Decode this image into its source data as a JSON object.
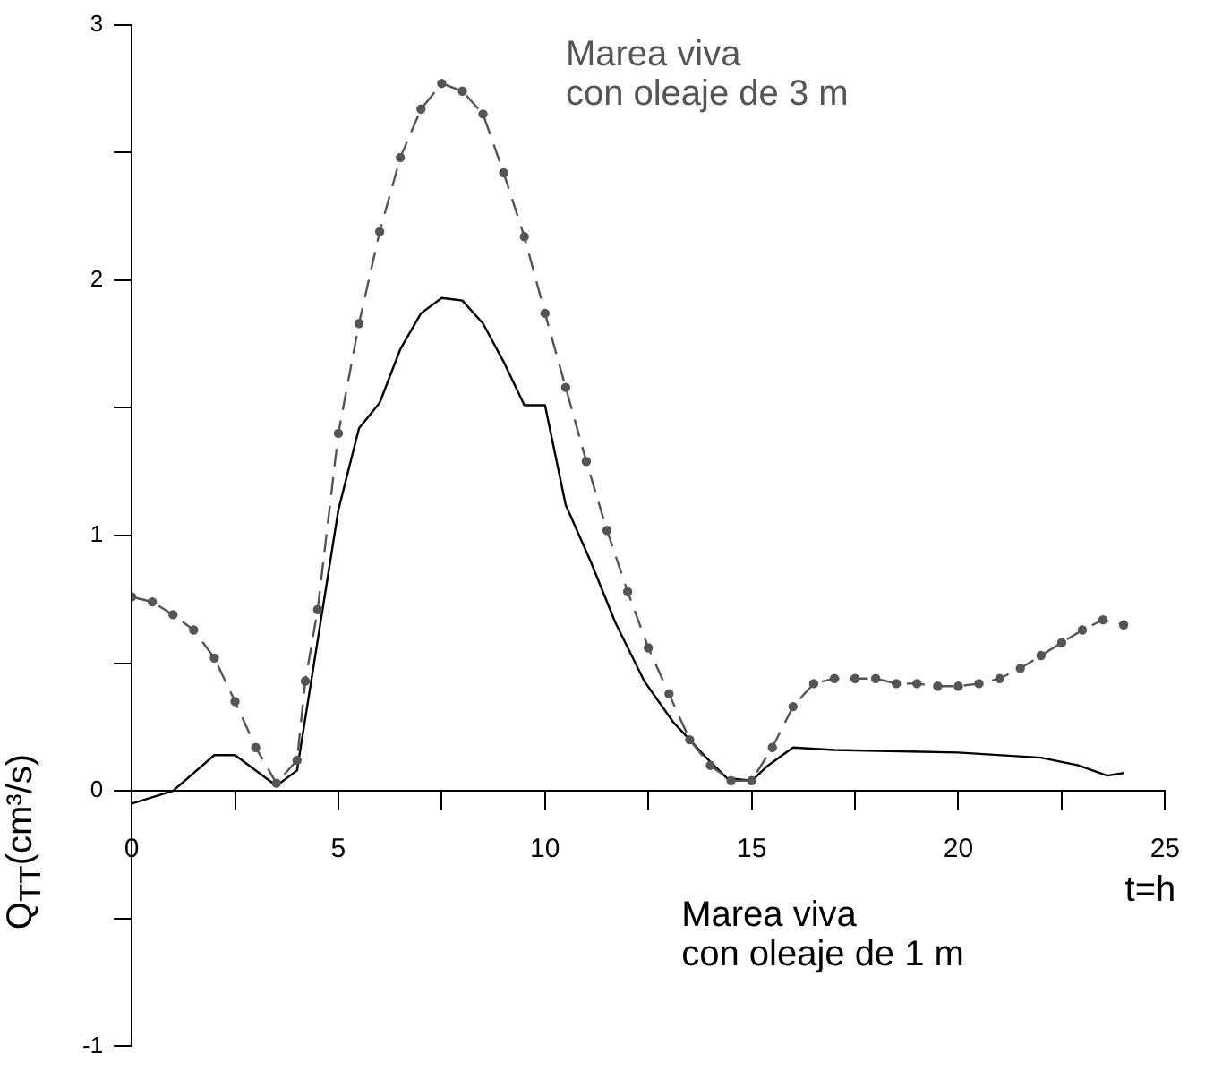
{
  "chart_data": {
    "type": "line",
    "xlabel": "t=h",
    "ylabel": "Q$_{TT}$(cm³/s)",
    "xlim": [
      0,
      25
    ],
    "xticks": [
      0,
      {
        "value": 2.5,
        "label": null
      },
      5,
      {
        "value": 7.5,
        "label": null
      },
      10,
      {
        "value": 12.5,
        "label": null
      },
      15,
      {
        "value": 17.5,
        "label": null
      },
      20,
      {
        "value": 22.5,
        "label": null
      },
      25
    ],
    "ylim": [
      -1,
      3
    ],
    "yticks": [
      -1,
      {
        "value": -0.5,
        "label": null
      },
      0,
      {
        "value": 0.5,
        "label": null
      },
      1,
      {
        "value": 1.5,
        "label": null
      },
      2,
      {
        "value": 2.5,
        "label": null
      },
      3
    ],
    "grid": false,
    "legend": false,
    "series": [
      {
        "name": "Marea viva\ncon oleaje de 3 m",
        "color": "#555555",
        "line_style": "dashed",
        "marker": "circle",
        "x": [
          0,
          0.5,
          1,
          1.5,
          2,
          2.5,
          3,
          3.5,
          4,
          4.2,
          4.5,
          5,
          5.5,
          6,
          6.5,
          7,
          7.5,
          8,
          8.5,
          9,
          9.5,
          10,
          10.5,
          11,
          11.5,
          12,
          12.5,
          13,
          13.5,
          14,
          14.5,
          15,
          15.5,
          16,
          16.5,
          17,
          17.5,
          18,
          18.5,
          19,
          19.5,
          20,
          20.5,
          21,
          21.5,
          22,
          22.5,
          23,
          23.5,
          24
        ],
        "values": [
          0.76,
          0.74,
          0.69,
          0.63,
          0.52,
          0.35,
          0.17,
          0.03,
          0.12,
          0.43,
          0.71,
          1.4,
          1.83,
          2.19,
          2.48,
          2.67,
          2.77,
          2.74,
          2.65,
          2.42,
          2.17,
          1.87,
          1.58,
          1.29,
          1.02,
          0.78,
          0.56,
          0.38,
          0.2,
          0.1,
          0.04,
          0.04,
          0.17,
          0.33,
          0.42,
          0.44,
          0.44,
          0.44,
          0.42,
          0.42,
          0.41,
          0.41,
          0.42,
          0.44,
          0.48,
          0.53,
          0.58,
          0.63,
          0.67,
          0.65
        ]
      },
      {
        "name": "Marea viva\ncon oleaje de 1 m",
        "color": "#000000",
        "line_style": "solid",
        "marker": "none",
        "x": [
          0,
          1,
          2,
          2.5,
          3.5,
          4,
          5,
          5.5,
          6,
          6.5,
          7,
          7.5,
          8,
          8.5,
          9,
          9.5,
          10,
          10.5,
          11.1,
          11.7,
          12.4,
          13.1,
          13.9,
          14.4,
          15,
          15.4,
          16,
          17,
          20,
          22,
          22.9,
          23.6,
          24
        ],
        "values": [
          -0.05,
          0,
          0.14,
          0.14,
          0.02,
          0.08,
          1.1,
          1.42,
          1.52,
          1.73,
          1.87,
          1.93,
          1.92,
          1.83,
          1.68,
          1.51,
          1.51,
          1.12,
          0.9,
          0.66,
          0.43,
          0.27,
          0.13,
          0.05,
          0.04,
          0.1,
          0.17,
          0.16,
          0.15,
          0.13,
          0.1,
          0.06,
          0.07
        ]
      }
    ]
  }
}
